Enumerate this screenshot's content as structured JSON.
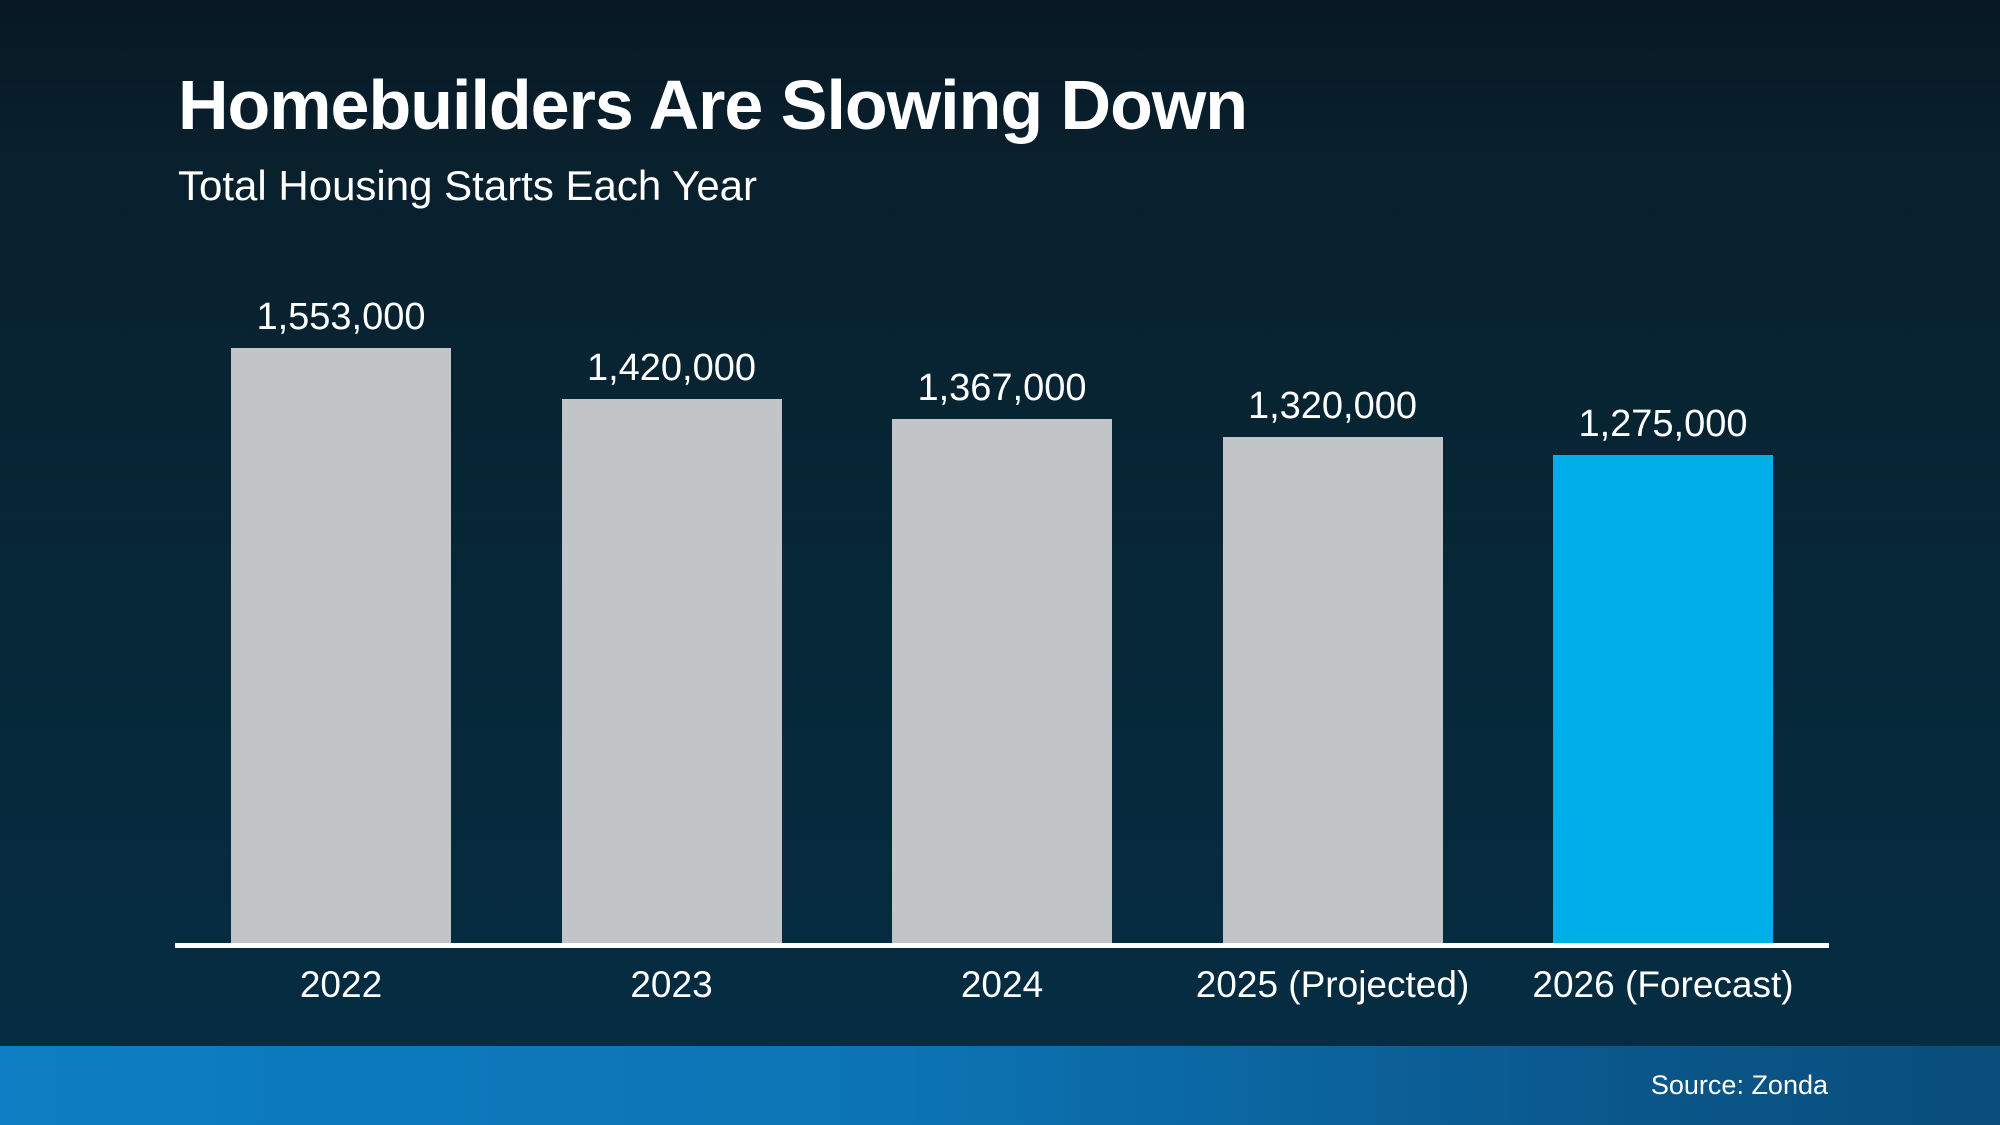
{
  "header": {
    "title": "Homebuilders Are Slowing Down",
    "subtitle": "Total Housing Starts Each Year"
  },
  "footer": {
    "source_label": "Source: Zonda"
  },
  "colors": {
    "background_top": "#071823",
    "background_bottom": "#052c42",
    "bar_default": "#c2c5c8",
    "bar_highlight": "#00aeea",
    "axis_line": "#ffffff",
    "text": "#ffffff",
    "footer_left": "#0d7ec3",
    "footer_right": "#0a4e7c"
  },
  "chart_data": {
    "type": "bar",
    "title": "Homebuilders Are Slowing Down",
    "subtitle": "Total Housing Starts Each Year",
    "categories": [
      "2022",
      "2023",
      "2024",
      "2025 (Projected)",
      "2026 (Forecast)"
    ],
    "values": [
      1553000,
      1420000,
      1367000,
      1320000,
      1275000
    ],
    "value_labels": [
      "1,553,000",
      "1,420,000",
      "1,367,000",
      "1,320,000",
      "1,275,000"
    ],
    "bar_colors": [
      "#c2c5c8",
      "#c2c5c8",
      "#c2c5c8",
      "#c2c5c8",
      "#00aeea"
    ],
    "xlabel": "",
    "ylabel": "",
    "ylim": [
      0,
      1600000
    ],
    "grid": false,
    "legend": null,
    "baseline": "zero",
    "data_labels_position": "above-bars",
    "source": "Source: Zonda"
  }
}
